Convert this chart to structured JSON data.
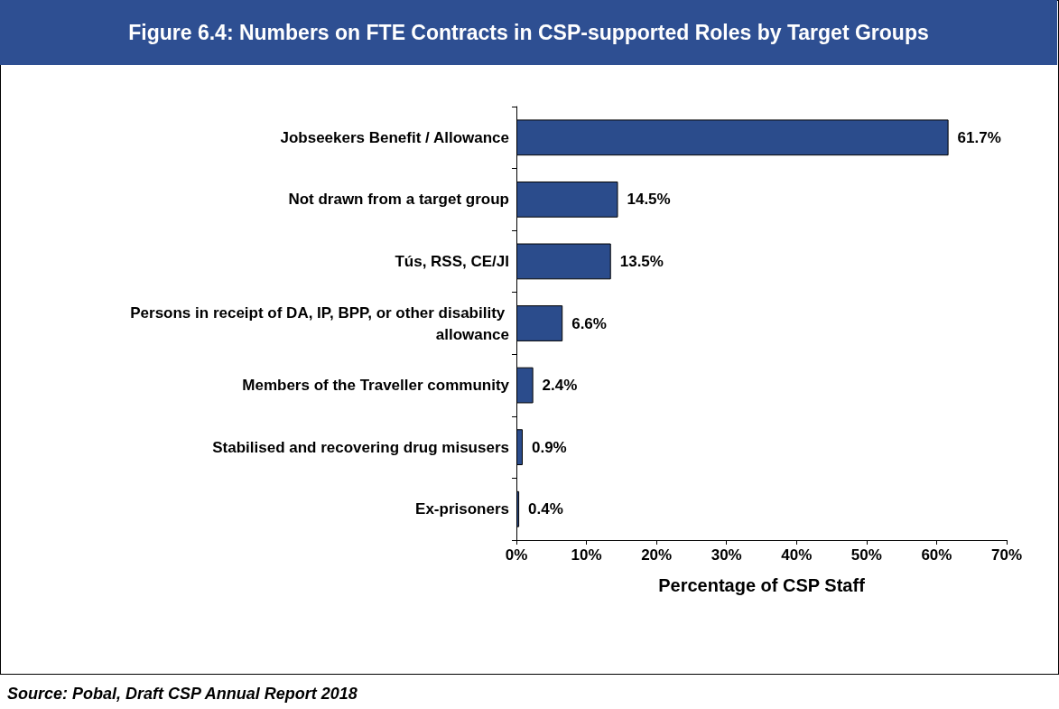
{
  "chart_data": {
    "type": "bar",
    "orientation": "horizontal",
    "title": "Figure 6.4: Numbers on FTE Contracts in CSP-supported Roles by Target Groups",
    "categories": [
      "Jobseekers Benefit / Allowance",
      "Not drawn from a target group",
      "Tús, RSS, CE/JI",
      "Persons in receipt of DA, IP, BPP, or other disability allowance",
      "Members of the Traveller community",
      "Stabilised and recovering drug misusers",
      "Ex-prisoners"
    ],
    "values": [
      61.7,
      14.5,
      13.5,
      6.6,
      2.4,
      0.9,
      0.4
    ],
    "value_labels": [
      "61.7%",
      "14.5%",
      "13.5%",
      "6.6%",
      "2.4%",
      "0.9%",
      "0.4%"
    ],
    "color": "#2b4c8c",
    "xlim": [
      0,
      70
    ],
    "xticks": [
      {
        "value": 0,
        "label": "0%"
      },
      {
        "value": 10,
        "label": "10%"
      },
      {
        "value": 20,
        "label": "20%"
      },
      {
        "value": 30,
        "label": "30%"
      },
      {
        "value": 40,
        "label": "40%"
      },
      {
        "value": 50,
        "label": "50%"
      },
      {
        "value": 60,
        "label": "60%"
      },
      {
        "value": 70,
        "label": "70%"
      }
    ],
    "xlabel": "Percentage of CSP Staff",
    "grid": false,
    "annotations": [
      "Source: Pobal, Draft CSP Annual Report 2018"
    ]
  }
}
